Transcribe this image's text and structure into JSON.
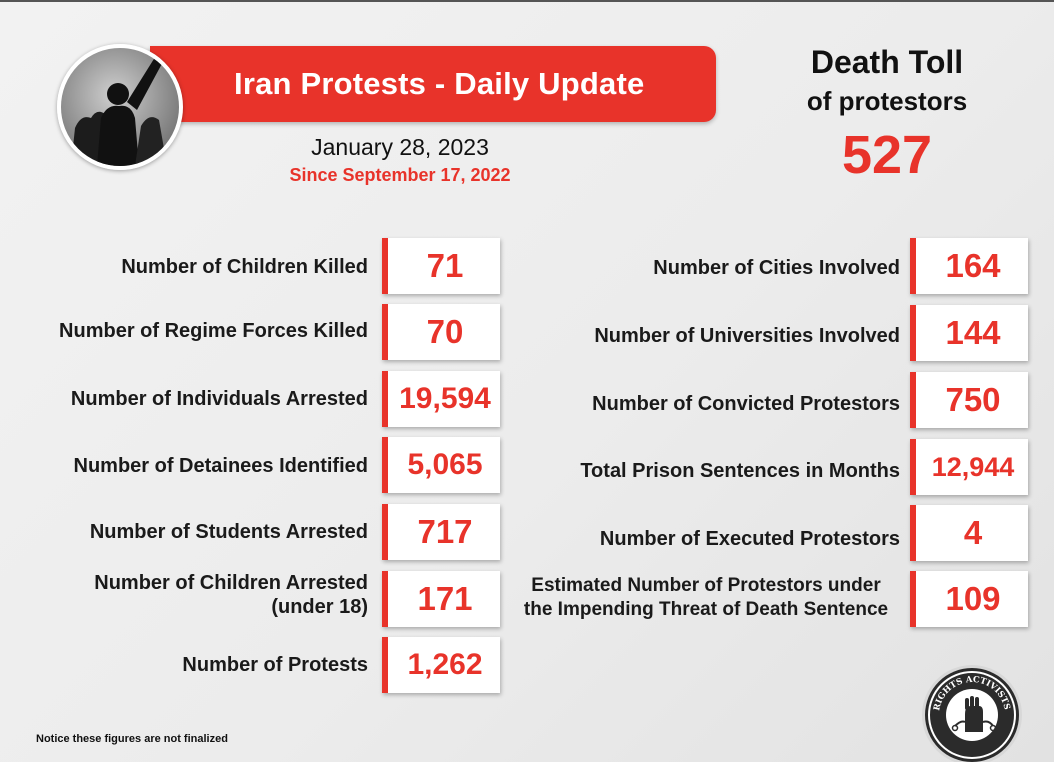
{
  "header": {
    "banner_title": "Iran Protests - Daily Update",
    "date": "January 28, 2023",
    "since": "Since September 17, 2022"
  },
  "death_toll": {
    "title": "Death Toll",
    "subtitle": "of protestors",
    "value": "527"
  },
  "left_stats": [
    {
      "label": "Number of Children Killed",
      "value": "71"
    },
    {
      "label": "Number of Regime Forces Killed",
      "value": "70"
    },
    {
      "label": "Number of Individuals Arrested",
      "value": "19,594"
    },
    {
      "label": "Number of Detainees Identified",
      "value": "5,065"
    },
    {
      "label": "Number of Students Arrested",
      "value": "717"
    },
    {
      "label": "Number of Children Arrested (under 18)",
      "value": "171"
    },
    {
      "label": "Number of Protests",
      "value": "1,262"
    }
  ],
  "right_stats": [
    {
      "label": "Number of Cities Involved",
      "value": "164"
    },
    {
      "label": "Number of Universities Involved",
      "value": "144"
    },
    {
      "label": "Number of Convicted Protestors",
      "value": "750"
    },
    {
      "label": "Total Prison Sentences in Months",
      "value": "12,944"
    },
    {
      "label": "Number of Executed Protestors",
      "value": "4"
    },
    {
      "label": "Estimated Number of Protestors under the Impending Threat of Death Sentence",
      "value": "109"
    }
  ],
  "notice": "Notice these figures are not finalized",
  "logo": {
    "text": "HUMAN RIGHTS ACTIVISTS IN IRAN",
    "icon": "fist-logo-icon"
  },
  "colors": {
    "accent": "#e8332a",
    "text": "#1a1a1a",
    "background": "#efefef"
  }
}
